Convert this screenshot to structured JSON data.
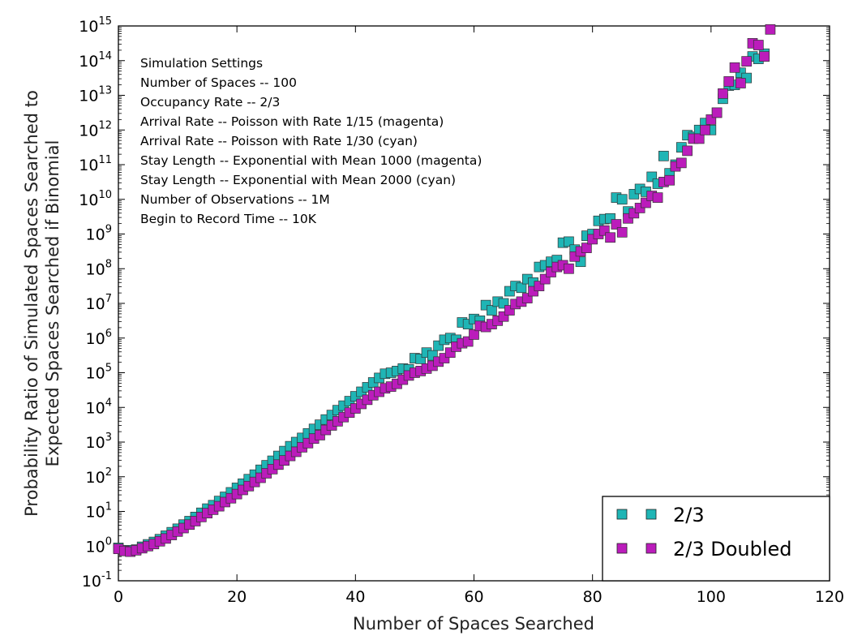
{
  "chart_data": {
    "type": "scatter",
    "title": "",
    "xlabel": "Number of Spaces Searched",
    "ylabel_lines": [
      "Probability Ratio of Simulated Spaces Searched to",
      "Expected Spaces Searched if Binomial"
    ],
    "xlim": [
      0,
      120
    ],
    "ylim_log10": [
      -1,
      15
    ],
    "yscale": "log",
    "x_ticks": [
      0,
      20,
      40,
      60,
      80,
      100,
      120
    ],
    "y_ticks": [
      {
        "base": "10",
        "exp": "-1"
      },
      {
        "base": "10",
        "exp": "0"
      },
      {
        "base": "10",
        "exp": "1"
      },
      {
        "base": "10",
        "exp": "2"
      },
      {
        "base": "10",
        "exp": "3"
      },
      {
        "base": "10",
        "exp": "4"
      },
      {
        "base": "10",
        "exp": "5"
      },
      {
        "base": "10",
        "exp": "6"
      },
      {
        "base": "10",
        "exp": "7"
      },
      {
        "base": "10",
        "exp": "8"
      },
      {
        "base": "10",
        "exp": "9"
      },
      {
        "base": "10",
        "exp": "10"
      },
      {
        "base": "10",
        "exp": "11"
      },
      {
        "base": "10",
        "exp": "12"
      },
      {
        "base": "10",
        "exp": "13"
      },
      {
        "base": "10",
        "exp": "14"
      },
      {
        "base": "10",
        "exp": "15"
      }
    ],
    "annotation": [
      "Simulation Settings",
      "Number of Spaces -- 100",
      "Occupancy Rate -- 2/3",
      "Arrival Rate -- Poisson with Rate 1/15 (magenta)",
      "Arrival Rate -- Poisson with Rate 1/30 (cyan)",
      "Stay Length -- Exponential with Mean 1000 (magenta)",
      "Stay Length -- Exponential with Mean 2000 (cyan)",
      "Number of Observations -- 1M",
      "Begin to Record Time -- 10K"
    ],
    "legend_position": "lower right",
    "series": [
      {
        "name": "2/3",
        "color": "#1fb5b5",
        "x": [
          0,
          1,
          2,
          3,
          4,
          5,
          6,
          7,
          8,
          9,
          10,
          11,
          12,
          13,
          14,
          15,
          16,
          17,
          18,
          19,
          20,
          21,
          22,
          23,
          24,
          25,
          26,
          27,
          28,
          29,
          30,
          31,
          32,
          33,
          34,
          35,
          36,
          37,
          38,
          39,
          40,
          41,
          42,
          43,
          44,
          45,
          46,
          47,
          48,
          49,
          50,
          51,
          52,
          53,
          54,
          55,
          56,
          57,
          58,
          59,
          60,
          61,
          62,
          63,
          64,
          65,
          66,
          67,
          68,
          69,
          70,
          71,
          72,
          73,
          74,
          75,
          76,
          77,
          78,
          79,
          80,
          81,
          82,
          83,
          84,
          85,
          86,
          87,
          88,
          89,
          90,
          91,
          92,
          93,
          94,
          95,
          96,
          97,
          98,
          99,
          100,
          101,
          102,
          103,
          104,
          105,
          106,
          107,
          108,
          109
        ],
        "y": [
          -0.05,
          -0.12,
          -0.12,
          -0.1,
          -0.02,
          0.05,
          0.12,
          0.2,
          0.3,
          0.4,
          0.5,
          0.62,
          0.72,
          0.84,
          0.96,
          1.08,
          1.18,
          1.3,
          1.42,
          1.55,
          1.68,
          1.8,
          1.93,
          2.06,
          2.2,
          2.33,
          2.46,
          2.6,
          2.74,
          2.88,
          3.0,
          3.12,
          3.25,
          3.38,
          3.5,
          3.65,
          3.78,
          3.92,
          4.05,
          4.18,
          4.32,
          4.45,
          4.58,
          4.72,
          4.85,
          4.97,
          5.0,
          5.05,
          5.12,
          5.1,
          5.42,
          5.4,
          5.58,
          5.5,
          5.78,
          5.95,
          6.0,
          5.95,
          6.45,
          6.4,
          6.55,
          6.5,
          6.95,
          6.8,
          7.05,
          7.0,
          7.35,
          7.5,
          7.45,
          7.7,
          7.6,
          8.05,
          8.1,
          8.2,
          8.25,
          8.75,
          8.78,
          8.55,
          8.2,
          8.95,
          9.0,
          9.38,
          9.43,
          9.45,
          10.05,
          10.0,
          9.65,
          10.15,
          10.3,
          10.22,
          10.65,
          10.45,
          11.25,
          10.75,
          11.0,
          11.5,
          11.85,
          11.8,
          12.0,
          12.2,
          12.0,
          12.5,
          12.9,
          13.28,
          13.3,
          13.65,
          13.5,
          14.12,
          14.05,
          14.2
        ]
      },
      {
        "name": "2/3 Doubled",
        "color": "#bb1cbb",
        "x": [
          0,
          1,
          2,
          3,
          4,
          5,
          6,
          7,
          8,
          9,
          10,
          11,
          12,
          13,
          14,
          15,
          16,
          17,
          18,
          19,
          20,
          21,
          22,
          23,
          24,
          25,
          26,
          27,
          28,
          29,
          30,
          31,
          32,
          33,
          34,
          35,
          36,
          37,
          38,
          39,
          40,
          41,
          42,
          43,
          44,
          45,
          46,
          47,
          48,
          49,
          50,
          51,
          52,
          53,
          54,
          55,
          56,
          57,
          58,
          59,
          60,
          61,
          62,
          63,
          64,
          65,
          66,
          67,
          68,
          69,
          70,
          71,
          72,
          73,
          74,
          75,
          76,
          77,
          78,
          79,
          80,
          81,
          82,
          83,
          84,
          85,
          86,
          87,
          88,
          89,
          90,
          91,
          92,
          93,
          94,
          95,
          96,
          97,
          98,
          99,
          100,
          101,
          102,
          103,
          104,
          105,
          106,
          107,
          108,
          109,
          110
        ],
        "y": [
          -0.08,
          -0.14,
          -0.16,
          -0.12,
          -0.06,
          0.0,
          0.06,
          0.14,
          0.22,
          0.32,
          0.42,
          0.52,
          0.62,
          0.72,
          0.84,
          0.95,
          1.05,
          1.15,
          1.27,
          1.38,
          1.5,
          1.62,
          1.73,
          1.85,
          1.97,
          2.1,
          2.22,
          2.35,
          2.47,
          2.6,
          2.72,
          2.85,
          2.97,
          3.1,
          3.2,
          3.35,
          3.48,
          3.6,
          3.72,
          3.85,
          3.97,
          4.1,
          4.22,
          4.35,
          4.45,
          4.55,
          4.6,
          4.68,
          4.8,
          4.92,
          5.0,
          5.05,
          5.12,
          5.2,
          5.32,
          5.42,
          5.58,
          5.75,
          5.85,
          5.9,
          6.1,
          6.35,
          6.32,
          6.4,
          6.5,
          6.62,
          6.8,
          6.98,
          7.05,
          7.15,
          7.35,
          7.5,
          7.7,
          7.9,
          8.05,
          8.1,
          8.0,
          8.35,
          8.5,
          8.6,
          8.85,
          9.0,
          9.1,
          8.9,
          9.28,
          9.05,
          9.45,
          9.6,
          9.75,
          9.9,
          10.1,
          10.05,
          10.5,
          10.55,
          10.95,
          11.05,
          11.4,
          11.75,
          11.75,
          12.0,
          12.3,
          12.5,
          13.05,
          13.4,
          13.8,
          13.35,
          13.98,
          14.5,
          14.45,
          14.12,
          14.9
        ]
      }
    ]
  }
}
